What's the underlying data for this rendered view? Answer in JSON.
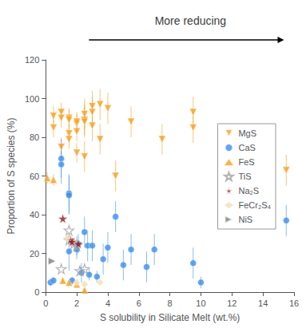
{
  "chart_data": {
    "type": "scatter",
    "title": "More reducing",
    "xlabel": "S solubility in Silicate Melt (wt.%)",
    "ylabel": "Proportion of S species (%)",
    "xlim": [
      0,
      16
    ],
    "ylim": [
      0,
      120
    ],
    "xticks": [
      0,
      2,
      4,
      6,
      8,
      10,
      12,
      14,
      16
    ],
    "yticks": [
      0,
      20,
      40,
      60,
      80,
      100,
      120
    ],
    "grid": false,
    "legend": "right",
    "series": [
      {
        "name": "MgS",
        "color": "#F5A020",
        "marker": "triangle_down",
        "x": [
          0.5,
          0.5,
          1.0,
          1.0,
          1.0,
          1.5,
          1.5,
          1.5,
          1.5,
          2.0,
          2.0,
          2.0,
          2.0,
          2.5,
          2.5,
          2.5,
          2.5,
          3.0,
          3.0,
          3.0,
          3.5,
          3.5,
          4.0,
          4.5,
          5.5,
          7.5,
          9.5,
          9.5,
          15.5
        ],
        "values": [
          85,
          91,
          93,
          75,
          90,
          82,
          90,
          89,
          79,
          87,
          88,
          83,
          72,
          92,
          89,
          88,
          70,
          96,
          93,
          86,
          97,
          79,
          95,
          60,
          88,
          79,
          93,
          85,
          63
        ],
        "yerr_lo": [
          5,
          5,
          5,
          5,
          5,
          5,
          5,
          5,
          5,
          5,
          5,
          5,
          5,
          8,
          8,
          8,
          8,
          8,
          8,
          8,
          8,
          8,
          8,
          8,
          8,
          8,
          8,
          8,
          8
        ],
        "yerr_hi": [
          5,
          5,
          5,
          5,
          5,
          5,
          5,
          5,
          5,
          5,
          5,
          5,
          5,
          8,
          8,
          8,
          8,
          8,
          8,
          8,
          8,
          8,
          8,
          8,
          8,
          8,
          8,
          8,
          8
        ]
      },
      {
        "name": "CaS",
        "color": "#3B8FE8",
        "marker": "circle",
        "x": [
          0.3,
          0.5,
          1.0,
          1.0,
          1.5,
          1.5,
          1.5,
          1.7,
          2.0,
          2.0,
          2.1,
          2.3,
          2.5,
          2.7,
          2.8,
          3.0,
          3.3,
          3.7,
          4.0,
          4.5,
          5.0,
          5.5,
          6.5,
          7.0,
          9.5,
          10.0,
          15.5
        ],
        "values": [
          5,
          6,
          69,
          66,
          51,
          50,
          21,
          6,
          24,
          22,
          25,
          10,
          31,
          24,
          9,
          24,
          8,
          17,
          23,
          39,
          14,
          22,
          13,
          22,
          15,
          5,
          37
        ],
        "yerr_lo": [
          2,
          2,
          10,
          10,
          10,
          10,
          10,
          2,
          5,
          5,
          5,
          5,
          8,
          8,
          3,
          8,
          3,
          8,
          8,
          8,
          8,
          8,
          8,
          8,
          8,
          3,
          8
        ],
        "yerr_hi": [
          2,
          2,
          10,
          10,
          10,
          10,
          10,
          2,
          5,
          5,
          5,
          5,
          8,
          8,
          3,
          8,
          3,
          8,
          8,
          8,
          8,
          8,
          8,
          8,
          8,
          3,
          8
        ]
      },
      {
        "name": "FeS",
        "color": "#F5A020",
        "marker": "triangle_up",
        "x": [
          0.1,
          0.5,
          1.1,
          1.5,
          2.0,
          2.5
        ],
        "values": [
          59,
          58,
          6,
          5,
          4,
          1
        ],
        "yerr_lo": [
          3,
          3,
          2,
          2,
          2,
          1
        ],
        "yerr_hi": [
          3,
          3,
          2,
          2,
          2,
          1
        ]
      },
      {
        "name": "TiS",
        "color": "#A0A0A0",
        "marker": "star_open",
        "x": [
          1.0,
          1.5,
          1.5,
          1.8,
          2.0,
          2.2,
          2.5
        ],
        "values": [
          12,
          32,
          27,
          25,
          24,
          11,
          12
        ]
      },
      {
        "name": "Na₂S",
        "color": "#8B1A1A",
        "marker": "star",
        "x": [
          1.1,
          1.6,
          1.7,
          2.1
        ],
        "values": [
          38,
          27,
          26,
          25
        ]
      },
      {
        "name": "FeCr₂S₄",
        "color": "#F5DEB3",
        "marker": "diamond",
        "x": [
          1.4,
          2.0,
          2.5,
          3.5
        ],
        "values": [
          28,
          5,
          4,
          5
        ]
      },
      {
        "name": "NiS",
        "color": "#808080",
        "marker": "triangle_right",
        "x": [
          0.4
        ],
        "values": [
          16
        ]
      }
    ]
  }
}
